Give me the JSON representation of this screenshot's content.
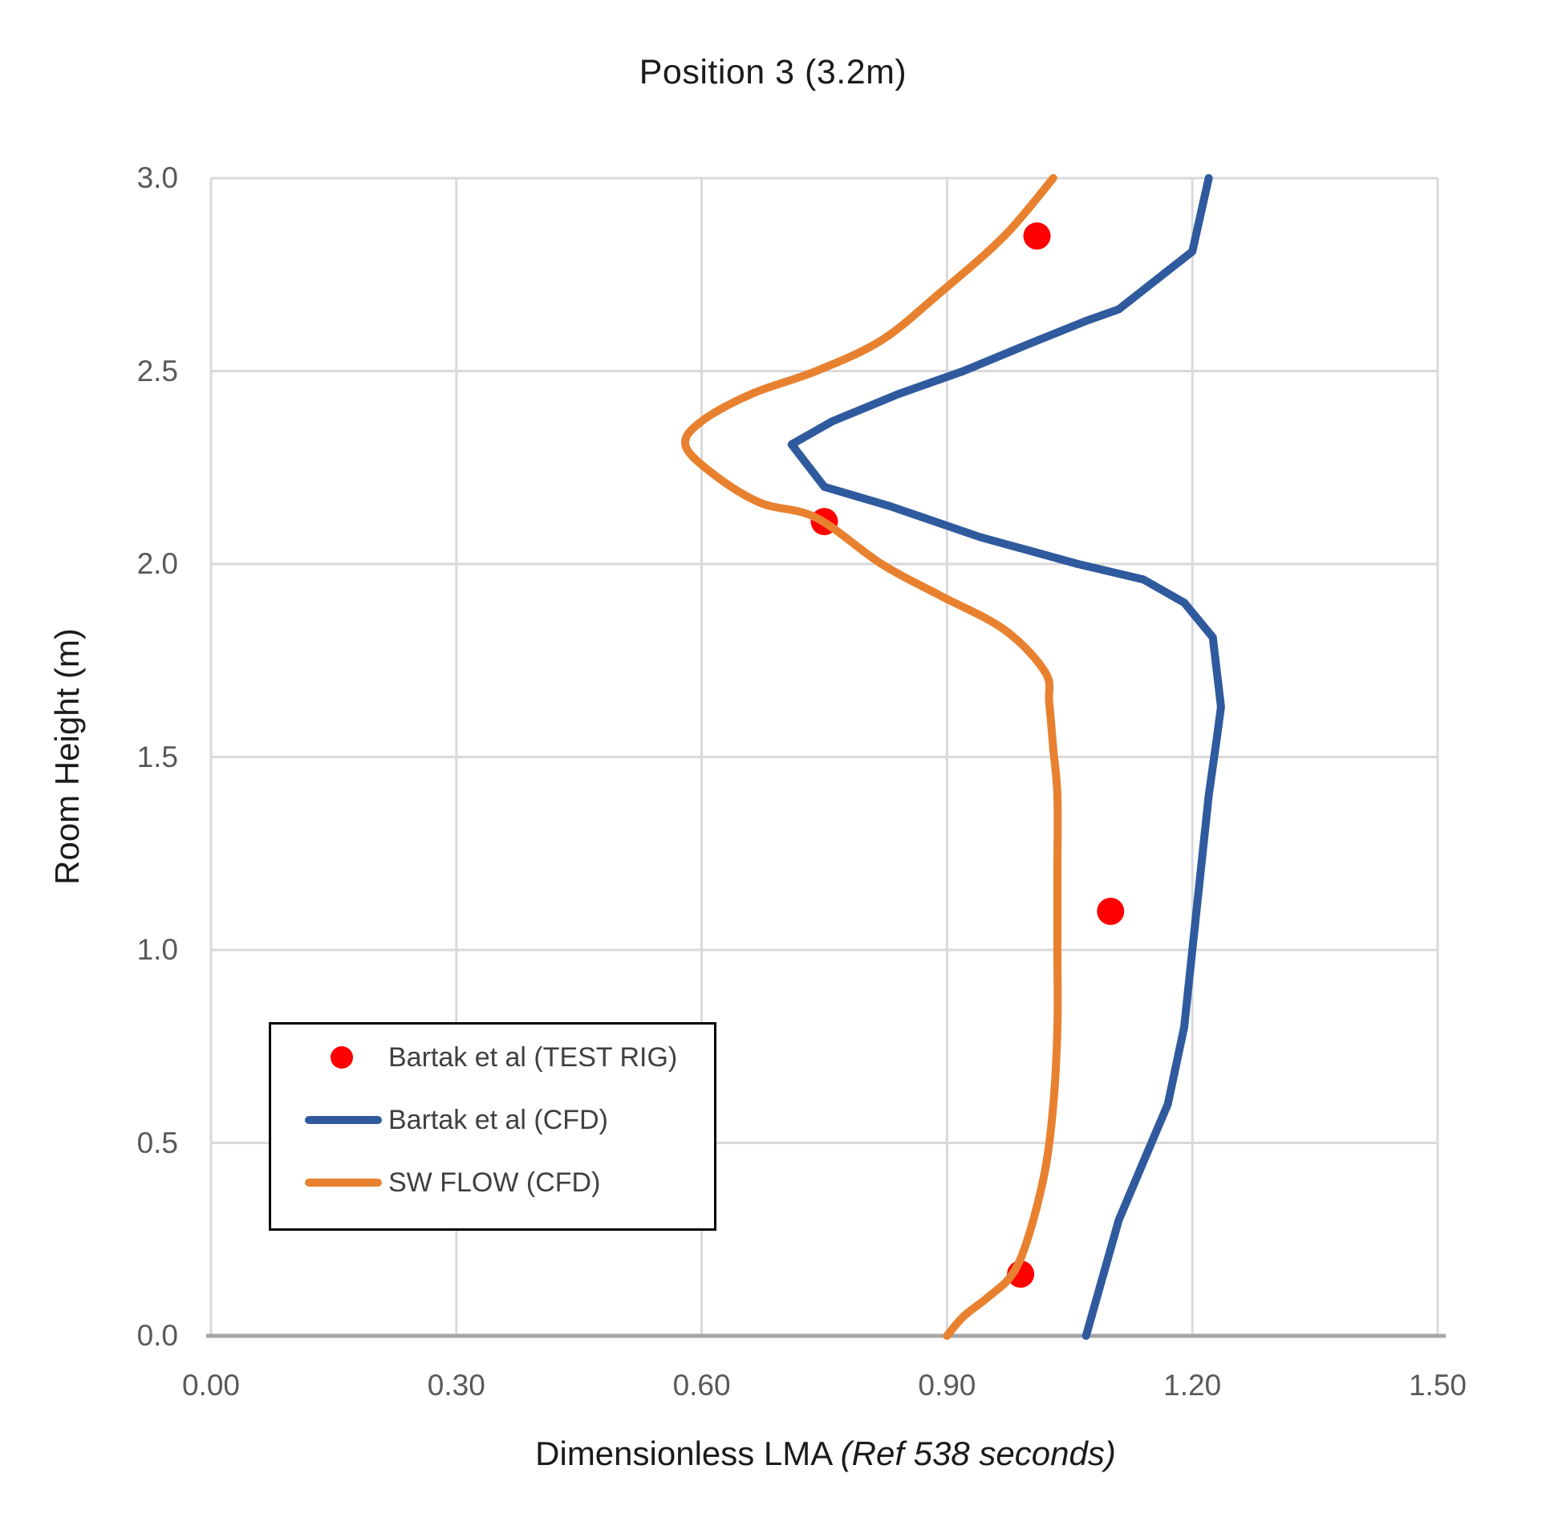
{
  "title": "Position 3 (3.2m)",
  "x_axis": {
    "label": "Dimensionless LMA ",
    "label_note": "(Ref 538 seconds)",
    "ticks": [
      "0.00",
      "0.30",
      "0.60",
      "0.90",
      "1.20",
      "1.50"
    ],
    "min": 0.0,
    "max": 1.5
  },
  "y_axis": {
    "label": "Room Height (m)",
    "ticks": [
      "0.0",
      "0.5",
      "1.0",
      "1.5",
      "2.0",
      "2.5",
      "3.0"
    ],
    "min": 0.0,
    "max": 3.0
  },
  "legend": {
    "position": "inside-left-lower",
    "items": [
      {
        "label": "Bartak et al (TEST RIG)",
        "swatch": "marker",
        "color": "#FF0000"
      },
      {
        "label": "Bartak et al (CFD)",
        "swatch": "line",
        "color": "#2F5A9D"
      },
      {
        "label": "SW FLOW (CFD)",
        "swatch": "line",
        "color": "#E8812F"
      }
    ]
  },
  "colors": {
    "gridline": "#D9D9D9",
    "axis_line": "#A6A6A6",
    "tick_text": "#595959",
    "title_text": "#1B1B1B",
    "legend_text": "#404040",
    "test_rig_red": "#FF0000",
    "bartak_cfd_blue": "#2F5A9D",
    "sw_flow_orange": "#E8812F"
  },
  "chart_data": {
    "type": "line",
    "title": "Position 3 (3.2m)",
    "xlabel": "Dimensionless LMA (Ref 538 seconds)",
    "ylabel": "Room Height (m)",
    "xlim": [
      0.0,
      1.5
    ],
    "ylim": [
      0.0,
      3.0
    ],
    "x_tick_step": 0.3,
    "y_tick_step": 0.5,
    "grid": true,
    "legend_position": "inside lower-left",
    "series": [
      {
        "name": "Bartak et al (TEST RIG)",
        "type": "scatter",
        "color": "#FF0000",
        "marker_radius": 17,
        "points": [
          [
            1.01,
            2.85
          ],
          [
            0.75,
            2.11
          ],
          [
            1.1,
            1.1
          ],
          [
            0.99,
            0.16
          ]
        ]
      },
      {
        "name": "Bartak et al (CFD)",
        "type": "line",
        "color": "#2F5A9D",
        "smooth": false,
        "line_width": 10,
        "points": [
          [
            1.07,
            0.0
          ],
          [
            1.09,
            0.15
          ],
          [
            1.11,
            0.3
          ],
          [
            1.14,
            0.45
          ],
          [
            1.17,
            0.6
          ],
          [
            1.19,
            0.8
          ],
          [
            1.2,
            1.0
          ],
          [
            1.21,
            1.2
          ],
          [
            1.22,
            1.4
          ],
          [
            1.23,
            1.55
          ],
          [
            1.235,
            1.63
          ],
          [
            1.23,
            1.72
          ],
          [
            1.225,
            1.81
          ],
          [
            1.19,
            1.9
          ],
          [
            1.14,
            1.96
          ],
          [
            1.06,
            2.0
          ],
          [
            0.94,
            2.07
          ],
          [
            0.83,
            2.15
          ],
          [
            0.75,
            2.2
          ],
          [
            0.71,
            2.31
          ],
          [
            0.76,
            2.37
          ],
          [
            0.84,
            2.44
          ],
          [
            0.92,
            2.5
          ],
          [
            1.0,
            2.57
          ],
          [
            1.07,
            2.63
          ],
          [
            1.11,
            2.66
          ],
          [
            1.2,
            2.81
          ],
          [
            1.22,
            3.0
          ]
        ]
      },
      {
        "name": "SW FLOW (CFD)",
        "type": "line",
        "color": "#E8812F",
        "smooth": true,
        "line_width": 10,
        "points": [
          [
            0.9,
            0.0
          ],
          [
            0.92,
            0.05
          ],
          [
            0.95,
            0.1
          ],
          [
            0.98,
            0.16
          ],
          [
            1.0,
            0.26
          ],
          [
            1.02,
            0.43
          ],
          [
            1.03,
            0.6
          ],
          [
            1.035,
            0.8
          ],
          [
            1.035,
            1.0
          ],
          [
            1.035,
            1.2
          ],
          [
            1.035,
            1.4
          ],
          [
            1.03,
            1.52
          ],
          [
            1.025,
            1.64
          ],
          [
            1.02,
            1.72
          ],
          [
            0.97,
            1.83
          ],
          [
            0.89,
            1.92
          ],
          [
            0.82,
            2.0
          ],
          [
            0.74,
            2.12
          ],
          [
            0.67,
            2.16
          ],
          [
            0.61,
            2.24
          ],
          [
            0.58,
            2.31
          ],
          [
            0.6,
            2.37
          ],
          [
            0.66,
            2.44
          ],
          [
            0.74,
            2.5
          ],
          [
            0.82,
            2.58
          ],
          [
            0.89,
            2.7
          ],
          [
            0.97,
            2.85
          ],
          [
            1.03,
            3.0
          ]
        ]
      }
    ]
  }
}
